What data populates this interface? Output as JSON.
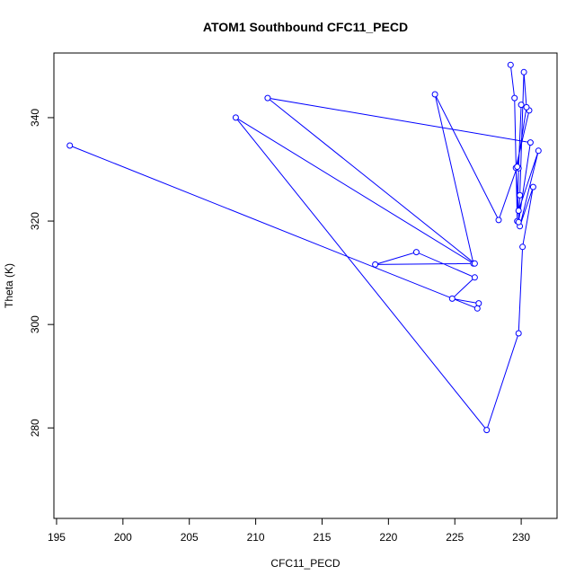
{
  "chart_data": {
    "type": "line",
    "title": "ATOM1 Southbound CFC11_PECD",
    "xlabel": "CFC11_PECD",
    "ylabel": "Theta (K)",
    "xlim": [
      194.8,
      232.7
    ],
    "ylim": [
      262.5,
      352.5
    ],
    "xticks": [
      195,
      200,
      205,
      210,
      215,
      220,
      225,
      230
    ],
    "yticks": [
      280,
      300,
      320,
      340
    ],
    "color": "#0000ff",
    "grid": false,
    "series": [
      {
        "x": [
          229.2,
          229.5,
          229.7,
          229.8,
          230.0,
          230.6,
          229.6,
          229.8,
          231.3,
          229.9,
          230.9,
          230.1,
          229.8,
          227.4,
          208.5,
          226.4,
          223.5,
          228.3,
          229.7,
          230.4,
          230.2,
          229.9,
          229.8,
          230.7,
          210.9,
          226.5,
          219.0,
          222.1,
          226.5,
          224.8,
          226.8,
          226.7,
          196.0
        ],
        "y": [
          350.2,
          343.8,
          320.0,
          330.2,
          342.5,
          341.4,
          330.3,
          322.0,
          333.6,
          319.0,
          326.6,
          315.0,
          298.3,
          279.6,
          340.0,
          311.8,
          344.5,
          320.2,
          330.5,
          342.0,
          348.8,
          325.0,
          319.8,
          335.2,
          343.8,
          311.8,
          311.6,
          314.0,
          309.1,
          305.0,
          304.1,
          303.1,
          334.6
        ]
      }
    ]
  }
}
